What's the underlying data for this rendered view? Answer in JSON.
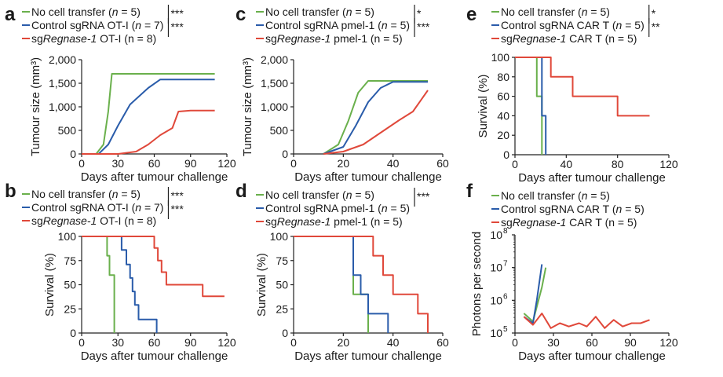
{
  "colors": {
    "green": "#6ab04c",
    "blue": "#2a5caa",
    "red": "#e0483a",
    "axis": "#222222"
  },
  "chart_data": [
    {
      "panel": "a",
      "type": "line",
      "ylabel": "Tumour size (mm³)",
      "xlabel": "Days after tumour challenge",
      "xlim": [
        0,
        120
      ],
      "ylim": [
        0,
        2000
      ],
      "xticks": [
        "0",
        "30",
        "60",
        "90",
        "120"
      ],
      "yticks": [
        "0",
        "500",
        "1,000",
        "1,500",
        "2,000"
      ],
      "legend": [
        {
          "pre": "No cell transfer (",
          "italic": "n",
          "post": " = 5)",
          "color": "green"
        },
        {
          "pre": "Control sgRNA OT-I (",
          "italic": "n",
          "post": " = 7)",
          "color": "blue"
        },
        {
          "pre": "sg",
          "italic": "Regnase-1",
          "post": " OT-I (n = 8)",
          "color": "red"
        }
      ],
      "stats": [
        "***",
        "***"
      ],
      "series": [
        {
          "name": "No cell transfer",
          "color": "green",
          "values": [
            [
              0,
              0
            ],
            [
              12,
              0
            ],
            [
              18,
              200
            ],
            [
              22,
              900
            ],
            [
              25,
              1700
            ],
            [
              110,
              1700
            ]
          ]
        },
        {
          "name": "Control sgRNA OT-I",
          "color": "blue",
          "values": [
            [
              0,
              0
            ],
            [
              14,
              0
            ],
            [
              22,
              200
            ],
            [
              30,
              600
            ],
            [
              40,
              1050
            ],
            [
              55,
              1400
            ],
            [
              65,
              1580
            ],
            [
              110,
              1580
            ]
          ]
        },
        {
          "name": "sgRegnase-1 OT-I",
          "color": "red",
          "values": [
            [
              0,
              0
            ],
            [
              30,
              0
            ],
            [
              45,
              50
            ],
            [
              55,
              200
            ],
            [
              65,
              400
            ],
            [
              75,
              550
            ],
            [
              80,
              900
            ],
            [
              90,
              920
            ],
            [
              110,
              920
            ]
          ]
        }
      ]
    },
    {
      "panel": "b",
      "type": "line",
      "ylabel": "Survival (%)",
      "xlabel": "Days after tumour challenge",
      "xlim": [
        0,
        120
      ],
      "ylim": [
        0,
        100
      ],
      "xticks": [
        "0",
        "30",
        "60",
        "90",
        "120"
      ],
      "yticks": [
        "0",
        "25",
        "50",
        "75",
        "100"
      ],
      "legend": [
        {
          "pre": "No cell transfer (",
          "italic": "n",
          "post": " = 5)",
          "color": "green"
        },
        {
          "pre": "Control sgRNA OT-I (",
          "italic": "n",
          "post": " = 7)",
          "color": "blue"
        },
        {
          "pre": "sg",
          "italic": "Regnase-1",
          "post": " OT-I (n = 8)",
          "color": "red"
        }
      ],
      "stats": [
        "***",
        "***"
      ],
      "series": [
        {
          "name": "No cell transfer",
          "color": "green",
          "values": [
            [
              0,
              100
            ],
            [
              21,
              100
            ],
            [
              21,
              80
            ],
            [
              23,
              80
            ],
            [
              23,
              60
            ],
            [
              27,
              60
            ],
            [
              27,
              0
            ]
          ]
        },
        {
          "name": "Control sgRNA OT-I",
          "color": "blue",
          "values": [
            [
              0,
              100
            ],
            [
              33,
              100
            ],
            [
              33,
              86
            ],
            [
              37,
              86
            ],
            [
              37,
              71
            ],
            [
              40,
              71
            ],
            [
              40,
              57
            ],
            [
              42,
              57
            ],
            [
              42,
              43
            ],
            [
              44,
              43
            ],
            [
              44,
              29
            ],
            [
              47,
              29
            ],
            [
              47,
              14
            ],
            [
              62,
              14
            ],
            [
              62,
              0
            ]
          ]
        },
        {
          "name": "sgRegnase-1 OT-I",
          "color": "red",
          "values": [
            [
              0,
              100
            ],
            [
              60,
              100
            ],
            [
              60,
              88
            ],
            [
              63,
              88
            ],
            [
              63,
              75
            ],
            [
              66,
              75
            ],
            [
              66,
              63
            ],
            [
              70,
              63
            ],
            [
              70,
              50
            ],
            [
              100,
              50
            ],
            [
              100,
              38
            ],
            [
              118,
              38
            ]
          ]
        }
      ]
    },
    {
      "panel": "c",
      "type": "line",
      "ylabel": "Tumour size (mm³)",
      "xlabel": "Days after tumour challenge",
      "xlim": [
        0,
        60
      ],
      "ylim": [
        0,
        2000
      ],
      "xticks": [
        "0",
        "20",
        "40",
        "60"
      ],
      "yticks": [
        "0",
        "500",
        "1,000",
        "1,500",
        "2,000"
      ],
      "legend": [
        {
          "pre": "No cell transfer (",
          "italic": "n",
          "post": " = 5)",
          "color": "green"
        },
        {
          "pre": "Control sgRNA pmel-1 (",
          "italic": "n",
          "post": " = 5)",
          "color": "blue"
        },
        {
          "pre": "sg",
          "italic": "Regnase-1",
          "post": " pmel-1 (n = 5)",
          "color": "red"
        }
      ],
      "stats": [
        "*",
        "***"
      ],
      "series": [
        {
          "name": "No cell transfer",
          "color": "green",
          "values": [
            [
              12,
              0
            ],
            [
              18,
              200
            ],
            [
              22,
              700
            ],
            [
              26,
              1300
            ],
            [
              30,
              1550
            ],
            [
              54,
              1550
            ]
          ]
        },
        {
          "name": "Control sgRNA pmel-1",
          "color": "blue",
          "values": [
            [
              12,
              0
            ],
            [
              20,
              150
            ],
            [
              25,
              600
            ],
            [
              30,
              1100
            ],
            [
              35,
              1400
            ],
            [
              40,
              1530
            ],
            [
              54,
              1530
            ]
          ]
        },
        {
          "name": "sgRegnase-1 pmel-1",
          "color": "red",
          "values": [
            [
              12,
              0
            ],
            [
              20,
              50
            ],
            [
              28,
              200
            ],
            [
              35,
              450
            ],
            [
              42,
              700
            ],
            [
              48,
              900
            ],
            [
              54,
              1350
            ]
          ]
        }
      ]
    },
    {
      "panel": "d",
      "type": "line",
      "ylabel": "Survival (%)",
      "xlabel": "Days after tumour challenge",
      "xlim": [
        0,
        60
      ],
      "ylim": [
        0,
        100
      ],
      "xticks": [
        "0",
        "20",
        "40",
        "60"
      ],
      "yticks": [
        "0",
        "25",
        "50",
        "75",
        "100"
      ],
      "legend": [
        {
          "pre": "No cell transfer (",
          "italic": "n",
          "post": " = 5)",
          "color": "green"
        },
        {
          "pre": "Control sgRNA pmel-1 (",
          "italic": "n",
          "post": " = 5)",
          "color": "blue"
        },
        {
          "pre": "sg",
          "italic": "Regnase-1",
          "post": " pmel-1 (n = 5)",
          "color": "red"
        }
      ],
      "stats": [
        "***"
      ],
      "series": [
        {
          "name": "No cell transfer",
          "color": "green",
          "values": [
            [
              0,
              100
            ],
            [
              24,
              100
            ],
            [
              24,
              40
            ],
            [
              30,
              40
            ],
            [
              30,
              0
            ]
          ]
        },
        {
          "name": "Control sgRNA pmel-1",
          "color": "blue",
          "values": [
            [
              0,
              100
            ],
            [
              24,
              100
            ],
            [
              24,
              60
            ],
            [
              27,
              60
            ],
            [
              27,
              40
            ],
            [
              30,
              40
            ],
            [
              30,
              20
            ],
            [
              38,
              20
            ],
            [
              38,
              0
            ]
          ]
        },
        {
          "name": "sgRegnase-1 pmel-1",
          "color": "red",
          "values": [
            [
              0,
              100
            ],
            [
              32,
              100
            ],
            [
              32,
              80
            ],
            [
              36,
              80
            ],
            [
              36,
              60
            ],
            [
              40,
              60
            ],
            [
              40,
              40
            ],
            [
              50,
              40
            ],
            [
              50,
              20
            ],
            [
              54,
              20
            ],
            [
              54,
              0
            ]
          ]
        }
      ]
    },
    {
      "panel": "e",
      "type": "line",
      "ylabel": "Survival (%)",
      "xlabel": "Days after tumour challenge",
      "xlim": [
        0,
        120
      ],
      "ylim": [
        0,
        100
      ],
      "xticks": [
        "0",
        "40",
        "80",
        "120"
      ],
      "yticks": [
        "0",
        "20",
        "40",
        "60",
        "80",
        "100"
      ],
      "legend": [
        {
          "pre": "No cell transfer (",
          "italic": "n",
          "post": " = 5)",
          "color": "green"
        },
        {
          "pre": "Control sgRNA CAR T (",
          "italic": "n",
          "post": " = 5)",
          "color": "blue"
        },
        {
          "pre": "sg",
          "italic": "Regnase-1",
          "post": " CAR T (n = 5)",
          "color": "red"
        }
      ],
      "stats": [
        "*",
        "**"
      ],
      "series": [
        {
          "name": "No cell transfer",
          "color": "green",
          "values": [
            [
              0,
              100
            ],
            [
              17,
              100
            ],
            [
              17,
              60
            ],
            [
              21,
              60
            ],
            [
              21,
              0
            ]
          ]
        },
        {
          "name": "Control sgRNA CAR T",
          "color": "blue",
          "values": [
            [
              0,
              100
            ],
            [
              21,
              100
            ],
            [
              21,
              40
            ],
            [
              24,
              40
            ],
            [
              24,
              0
            ]
          ]
        },
        {
          "name": "sgRegnase-1 CAR T",
          "color": "red",
          "values": [
            [
              0,
              100
            ],
            [
              28,
              100
            ],
            [
              28,
              80
            ],
            [
              45,
              80
            ],
            [
              45,
              60
            ],
            [
              80,
              60
            ],
            [
              80,
              40
            ],
            [
              105,
              40
            ]
          ]
        }
      ]
    },
    {
      "panel": "f",
      "type": "line",
      "ylabel": "Photons per second",
      "xlabel": "Days after tumour challenge",
      "xlim": [
        0,
        120
      ],
      "ylim": [
        5,
        8
      ],
      "yscale": "log",
      "xticks": [
        "0",
        "30",
        "60",
        "90",
        "120"
      ],
      "yticks_exp": [
        "5",
        "6",
        "7",
        "8"
      ],
      "legend": [
        {
          "pre": "No cell transfer (",
          "italic": "n",
          "post": " = 5)",
          "color": "green"
        },
        {
          "pre": "Control sgRNA CAR T (",
          "italic": "n",
          "post": " = 5)",
          "color": "blue"
        },
        {
          "pre": "sg",
          "italic": "Regnase-1",
          "post": " CAR T (n = 5)",
          "color": "red"
        }
      ],
      "stats": [],
      "series": [
        {
          "name": "No cell transfer",
          "color": "green",
          "values": [
            [
              7,
              5.6
            ],
            [
              14,
              5.35
            ],
            [
              21,
              6.4
            ],
            [
              24,
              7.0
            ]
          ]
        },
        {
          "name": "Control sgRNA CAR T",
          "color": "blue",
          "values": [
            [
              7,
              5.5
            ],
            [
              14,
              5.3
            ],
            [
              17,
              6.0
            ],
            [
              21,
              7.1
            ]
          ]
        },
        {
          "name": "sgRegnase-1 CAR T",
          "color": "red",
          "values": [
            [
              7,
              5.5
            ],
            [
              14,
              5.25
            ],
            [
              21,
              5.6
            ],
            [
              28,
              5.15
            ],
            [
              35,
              5.3
            ],
            [
              42,
              5.2
            ],
            [
              50,
              5.3
            ],
            [
              56,
              5.2
            ],
            [
              63,
              5.5
            ],
            [
              70,
              5.15
            ],
            [
              77,
              5.4
            ],
            [
              84,
              5.2
            ],
            [
              91,
              5.3
            ],
            [
              98,
              5.3
            ],
            [
              105,
              5.4
            ]
          ]
        }
      ]
    }
  ]
}
